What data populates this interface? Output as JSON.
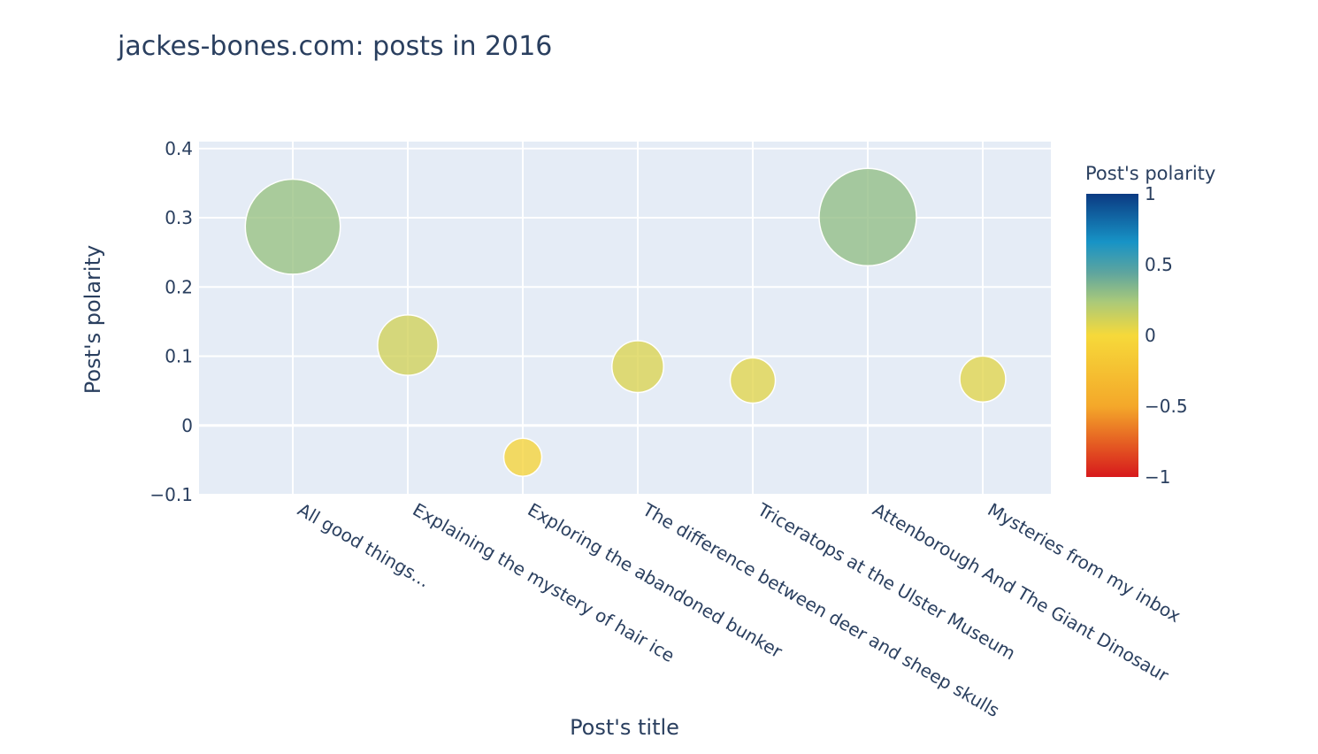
{
  "chart_data": {
    "type": "scatter",
    "title": "jackes-bones.com: posts in 2016",
    "xlabel": "Post's title",
    "ylabel": "Post's polarity",
    "categories": [
      "All good things...",
      "Explaining the mystery of hair ice",
      "Exploring the abandoned bunker",
      "The difference between deer and sheep skulls",
      "Triceratops at the Ulster Museum",
      "Attenborough And The Giant Dinosaur",
      "Mysteries from my inbox"
    ],
    "values": [
      0.287,
      0.116,
      -0.046,
      0.085,
      0.065,
      0.301,
      0.067
    ],
    "y_ticks": [
      "−0.1",
      "0",
      "0.1",
      "0.2",
      "0.3",
      "0.4"
    ],
    "y_tick_values": [
      -0.1,
      0,
      0.1,
      0.2,
      0.3,
      0.4
    ],
    "ylim": [
      -0.1,
      0.41
    ],
    "grid": true,
    "colorbar": {
      "title": "Post's polarity",
      "range": [
        -1,
        1
      ],
      "tick_labels": [
        "1",
        "0.5",
        "0",
        "−0.5",
        "−1"
      ],
      "tick_values": [
        1,
        0.5,
        0,
        -0.5,
        -1
      ],
      "colorscale": [
        "#d7191c",
        "#f4a82a",
        "#f6d93a",
        "#a9c97a",
        "#5fa59e",
        "#1793c6",
        "#0b3a82"
      ]
    },
    "colors": {
      "plot_background": "#e5ecf6",
      "grid": "#ffffff",
      "text": "#2a3f5f"
    }
  }
}
